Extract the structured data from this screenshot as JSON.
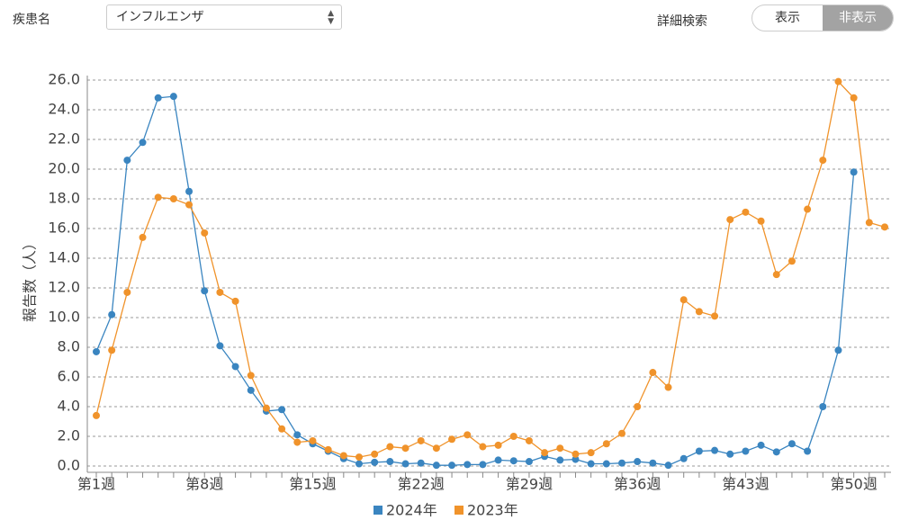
{
  "controls": {
    "disease_label": "疾患名",
    "disease_value": "インフルエンザ",
    "detail_label": "詳細検索",
    "toggle_show": "表示",
    "toggle_hide": "非表示"
  },
  "chart_data": {
    "type": "line",
    "y_label": "報告数（人）",
    "categories": [
      "第1週",
      null,
      null,
      null,
      null,
      null,
      null,
      "第8週",
      null,
      null,
      null,
      null,
      null,
      null,
      "第15週",
      null,
      null,
      null,
      null,
      null,
      null,
      "第22週",
      null,
      null,
      null,
      null,
      null,
      null,
      "第29週",
      null,
      null,
      null,
      null,
      null,
      null,
      "第36週",
      null,
      null,
      null,
      null,
      null,
      null,
      "第43週",
      null,
      null,
      null,
      null,
      null,
      null,
      "第50週",
      null,
      null
    ],
    "ylim": [
      0,
      26
    ],
    "yticks": [
      {
        "value": 0,
        "label": "0.0"
      },
      {
        "value": 2,
        "label": "2.0"
      },
      {
        "value": 4,
        "label": "4.0"
      },
      {
        "value": 6,
        "label": "6.0"
      },
      {
        "value": 8,
        "label": "8.0"
      },
      {
        "value": 10,
        "label": "10.0"
      },
      {
        "value": 12,
        "label": "12.0"
      },
      {
        "value": 14,
        "label": "14.0"
      },
      {
        "value": 16,
        "label": "16.0"
      },
      {
        "value": 18,
        "label": "18.0"
      },
      {
        "value": 20,
        "label": "20.0"
      },
      {
        "value": 22,
        "label": "22.0"
      },
      {
        "value": 24,
        "label": "24.0"
      },
      {
        "value": 26,
        "label": "26.0"
      }
    ],
    "grid": true,
    "series": [
      {
        "name": "2024年",
        "color": "#3a85c0",
        "values": [
          7.7,
          10.2,
          20.6,
          21.8,
          24.8,
          24.9,
          18.5,
          11.8,
          8.1,
          6.7,
          5.1,
          3.7,
          3.8,
          2.1,
          1.5,
          1.0,
          0.5,
          0.15,
          0.25,
          0.3,
          0.15,
          0.2,
          0.05,
          0.05,
          0.1,
          0.1,
          0.4,
          0.35,
          0.3,
          0.65,
          0.4,
          0.45,
          0.15,
          0.15,
          0.2,
          0.3,
          0.2,
          0.05,
          0.5,
          1.0,
          1.05,
          0.8,
          1.0,
          1.4,
          0.95,
          1.5,
          1.0,
          4.0,
          7.8,
          19.8,
          null,
          null
        ]
      },
      {
        "name": "2023年",
        "color": "#f0932b",
        "values": [
          3.4,
          7.8,
          11.7,
          15.4,
          18.1,
          18.0,
          17.6,
          15.7,
          11.7,
          11.1,
          6.1,
          3.9,
          2.5,
          1.6,
          1.7,
          1.1,
          0.7,
          0.6,
          0.8,
          1.3,
          1.2,
          1.7,
          1.2,
          1.8,
          2.1,
          1.3,
          1.4,
          2.0,
          1.7,
          0.9,
          1.2,
          0.8,
          0.9,
          1.5,
          2.2,
          4.0,
          6.3,
          5.3,
          11.2,
          10.4,
          10.1,
          16.6,
          17.1,
          16.5,
          12.9,
          13.8,
          17.3,
          20.6,
          25.9,
          24.8,
          16.4,
          16.1
        ]
      }
    ]
  }
}
